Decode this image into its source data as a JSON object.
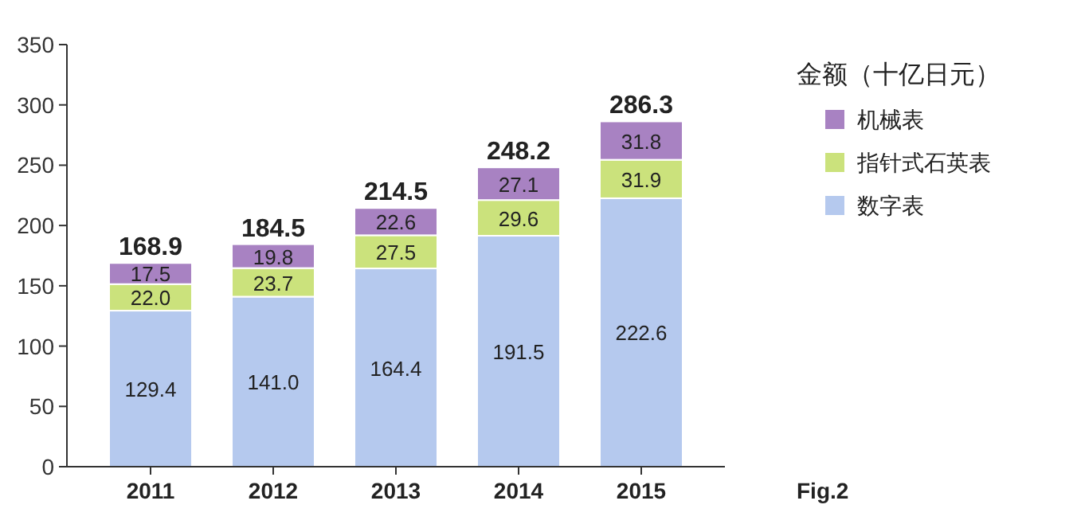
{
  "chart_data": {
    "type": "bar",
    "stacked": true,
    "categories": [
      "2011",
      "2012",
      "2013",
      "2014",
      "2015"
    ],
    "series": [
      {
        "name": "数字表",
        "color": "#b5c9ee",
        "values": [
          129.4,
          141.0,
          164.4,
          191.5,
          222.6
        ],
        "value_labels": [
          "129.4",
          "141.0",
          "164.4",
          "191.5",
          "222.6"
        ]
      },
      {
        "name": "指针式石英表",
        "color": "#cbe27c",
        "values": [
          22.0,
          23.7,
          27.5,
          29.6,
          31.9
        ],
        "value_labels": [
          "22.0",
          "23.7",
          "27.5",
          "29.6",
          "31.9"
        ]
      },
      {
        "name": "机械表",
        "color": "#a882c2",
        "values": [
          17.5,
          19.8,
          22.6,
          27.1,
          31.8
        ],
        "value_labels": [
          "17.5",
          "19.8",
          "22.6",
          "27.1",
          "31.8"
        ]
      }
    ],
    "totals": [
      "168.9",
      "184.5",
      "214.5",
      "248.2",
      "286.3"
    ],
    "ylim": [
      0,
      350
    ],
    "yticks": [
      0,
      50,
      100,
      150,
      200,
      250,
      300,
      350
    ],
    "legend_title": "金额（十亿日元）",
    "legend": "top right",
    "grid": false,
    "annotations": [
      "Fig.2"
    ]
  }
}
